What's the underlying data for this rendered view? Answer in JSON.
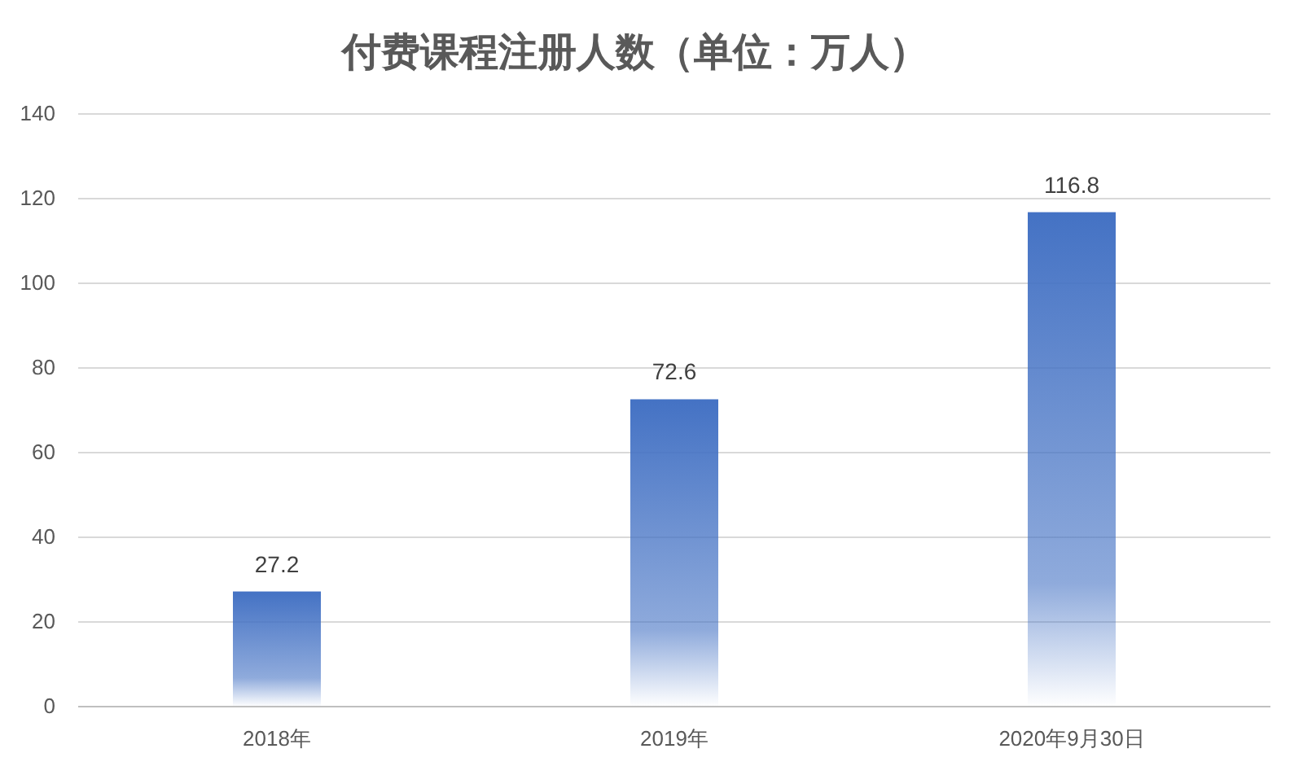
{
  "chart_data": {
    "type": "bar",
    "title": "付费课程注册人数（单位：万人）",
    "categories": [
      "2018年",
      "2019年",
      "2020年9月30日"
    ],
    "values": [
      27.2,
      72.6,
      116.8
    ],
    "color": "#4472c4",
    "ylim": [
      0,
      140
    ],
    "yticks": [
      0,
      20,
      40,
      60,
      80,
      100,
      120,
      140
    ],
    "grid": "y",
    "data_labels": true
  }
}
